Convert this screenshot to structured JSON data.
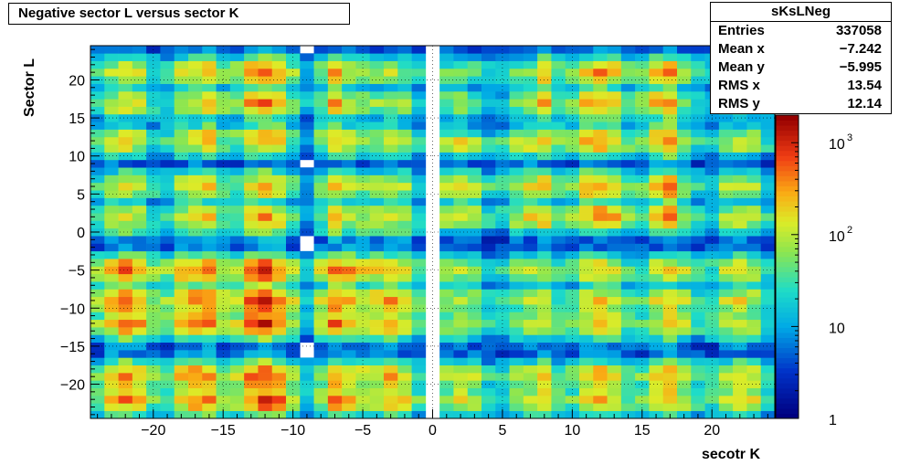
{
  "title": "Negative sector L versus sector K",
  "stats": {
    "name": "sKsLNeg",
    "rows": [
      {
        "label": "Entries",
        "value": "337058"
      },
      {
        "label": "Mean x",
        "value": "−7.242"
      },
      {
        "label": "Mean y",
        "value": "−5.995"
      },
      {
        "label": "RMS x",
        "value": "13.54"
      },
      {
        "label": "RMS y",
        "value": "12.14"
      }
    ]
  },
  "chart_data": {
    "type": "heatmap",
    "title": "Negative sector L versus sector K",
    "xlabel": "secotr K",
    "ylabel": "Sector L",
    "xlim": [
      -24.5,
      24.5
    ],
    "ylim": [
      -24.5,
      24.5
    ],
    "x_ticks": [
      -20,
      -15,
      -10,
      -5,
      0,
      5,
      10,
      15,
      20
    ],
    "y_ticks": [
      -20,
      -15,
      -10,
      -5,
      0,
      5,
      10,
      15,
      20
    ],
    "x_tick_labels": [
      "−20",
      "−15",
      "−10",
      "−5",
      "0",
      "5",
      "10",
      "15",
      "20"
    ],
    "y_tick_labels": [
      "−20",
      "−15",
      "−10",
      "−5",
      "0",
      "5",
      "10",
      "15",
      "20"
    ],
    "grid": true,
    "colorbar": {
      "scale": "log",
      "labels": [
        "1",
        "10",
        "10",
        "10"
      ],
      "label_exponents": [
        "",
        "",
        "2",
        "3"
      ]
    },
    "bin_centers": [
      -24,
      -23,
      -22,
      -21,
      -20,
      -19,
      -18,
      -17,
      -16,
      -15,
      -14,
      -13,
      -12,
      -11,
      -10,
      -9,
      -8,
      -7,
      -6,
      -5,
      -4,
      -3,
      -2,
      -1,
      0,
      1,
      2,
      3,
      4,
      5,
      6,
      7,
      8,
      9,
      10,
      11,
      12,
      13,
      14,
      15,
      16,
      17,
      18,
      19,
      20,
      21,
      22,
      23,
      24
    ],
    "cluster_l_centers": [
      21,
      17,
      12,
      6,
      2,
      -5,
      -9,
      -12,
      -19,
      -22
    ],
    "cluster_k_centers": [
      -22,
      -17,
      -12,
      -6,
      -3,
      2,
      7,
      12,
      17,
      22
    ],
    "peak_log10_counts": {
      "rows": [
        -20,
        -5,
        5,
        20
      ],
      "cols": [
        -22,
        -12,
        -2,
        2,
        12,
        22
      ],
      "values": [
        [
          2.6,
          2.9,
          2.4,
          2.1,
          2.5,
          2.3
        ],
        [
          2.7,
          3.0,
          2.5,
          2.0,
          2.3,
          2.2
        ],
        [
          2.2,
          2.5,
          2.1,
          2.2,
          2.6,
          2.1
        ],
        [
          2.2,
          2.7,
          2.0,
          1.8,
          2.6,
          2.0
        ]
      ]
    }
  }
}
